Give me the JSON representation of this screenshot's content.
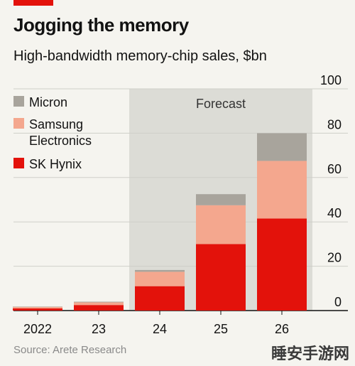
{
  "header": {
    "title": "Jogging the memory",
    "subtitle": "High-bandwidth memory-chip sales, $bn"
  },
  "chart_data": {
    "type": "bar",
    "stacked": true,
    "categories": [
      "2022",
      "23",
      "24",
      "25",
      "26"
    ],
    "series": [
      {
        "name": "SK Hynix",
        "color": "#e3120b",
        "values": [
          1,
          2.5,
          11,
          30,
          41.5
        ]
      },
      {
        "name": "Samsung Electronics",
        "color": "#f4a78e",
        "values": [
          0.7,
          1.2,
          6.5,
          17.5,
          26
        ]
      },
      {
        "name": "Micron",
        "color": "#a8a49c",
        "values": [
          0.1,
          0.3,
          0.8,
          5,
          12.5
        ]
      }
    ],
    "legend_order": [
      "Micron",
      "Samsung Electronics",
      "SK Hynix"
    ],
    "legend": {
      "micron": "Micron",
      "samsung_line1": "Samsung",
      "samsung_line2": "Electronics",
      "skhynix": "SK Hynix"
    },
    "y_ticks": [
      "100",
      "80",
      "60",
      "40",
      "20",
      "0"
    ],
    "ylim": [
      0,
      100
    ],
    "forecast_label": "Forecast",
    "forecast_start_category": "24",
    "grid": true,
    "axis_side": "right"
  },
  "footer": {
    "source": "Source: Arete Research",
    "watermark": "睡安手游网"
  }
}
